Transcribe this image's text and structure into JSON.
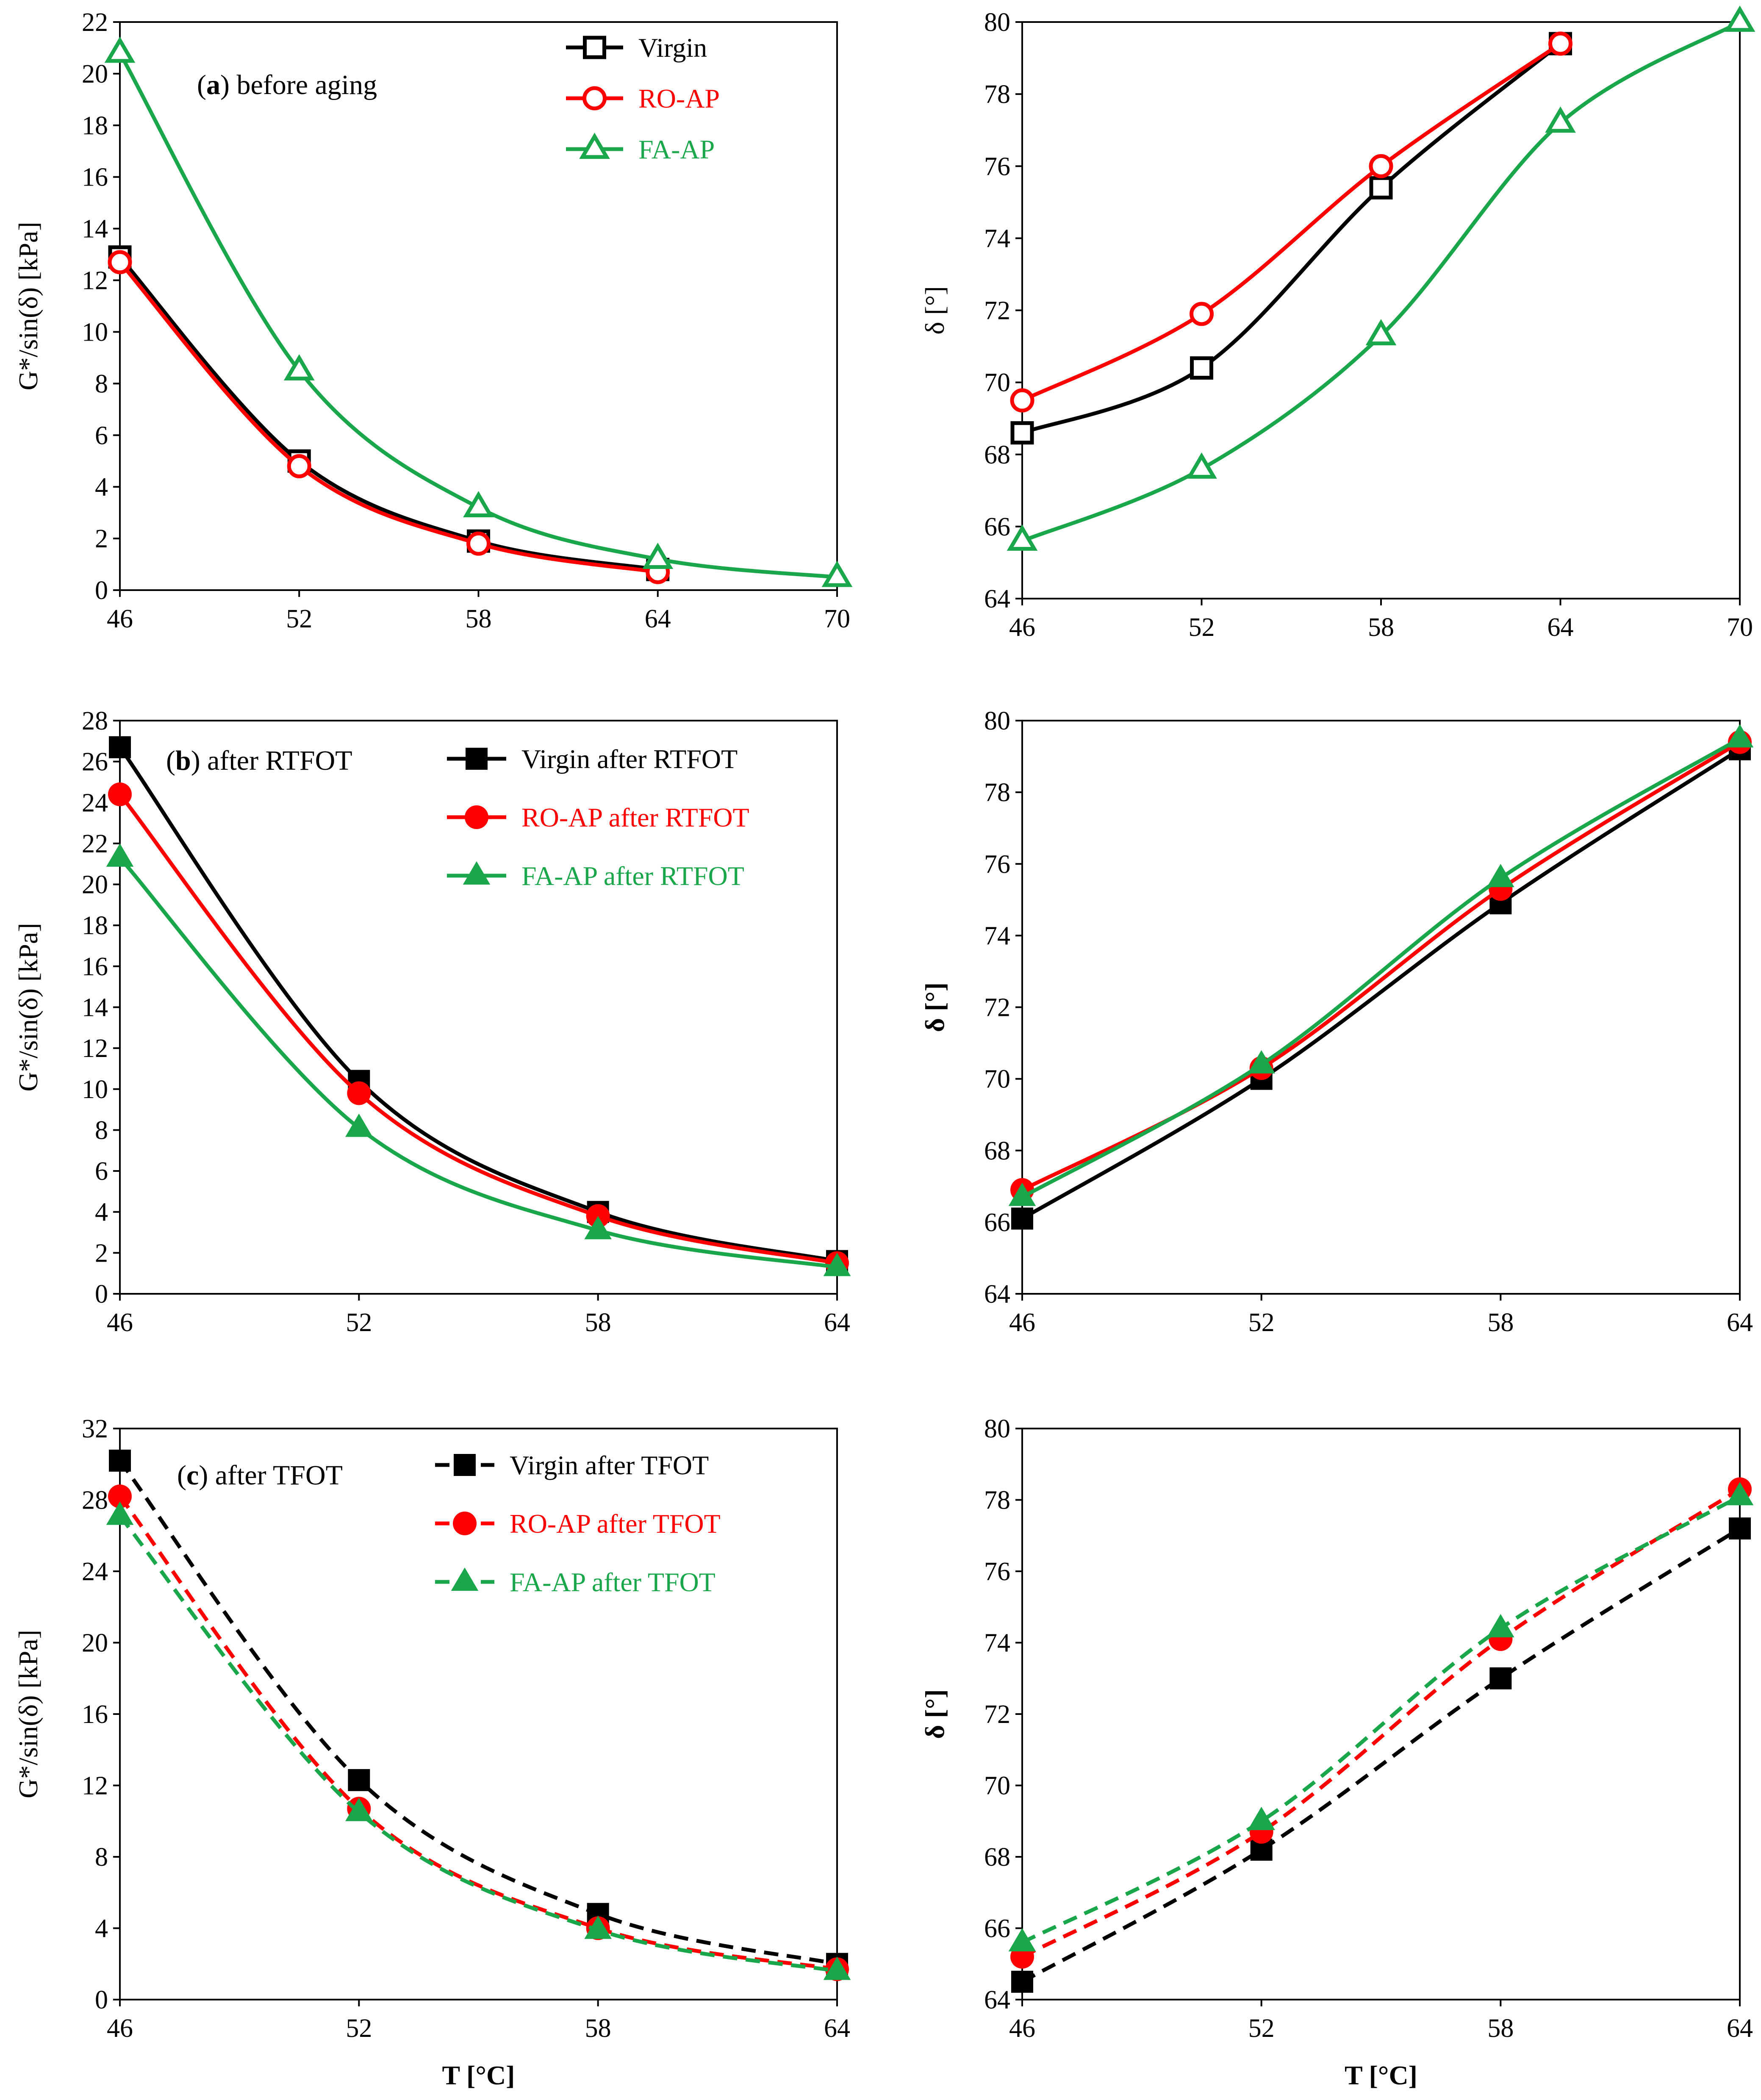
{
  "colors": {
    "virgin": "#000000",
    "roap": "#ff0000",
    "faap": "#1aa64b"
  },
  "chart_data": [
    {
      "id": "a-left",
      "type": "line",
      "annotation_letter": "a",
      "annotation_rest": " before aging",
      "ylabel": "G*/sin(δ) [kPa]",
      "xlabel": "",
      "ylim": [
        0,
        22
      ],
      "ystep": 2,
      "xticks": [
        46,
        52,
        58,
        64,
        70
      ],
      "series": [
        {
          "name": "Virgin",
          "color": "virgin",
          "marker": "square-open",
          "dash": false,
          "x": [
            46,
            52,
            58,
            64
          ],
          "values": [
            12.9,
            5.0,
            1.9,
            0.8
          ]
        },
        {
          "name": "RO-AP",
          "color": "roap",
          "marker": "circle-open",
          "dash": false,
          "x": [
            46,
            52,
            58,
            64
          ],
          "values": [
            12.7,
            4.8,
            1.8,
            0.7
          ]
        },
        {
          "name": "FA-AP",
          "color": "faap",
          "marker": "triangle-open",
          "dash": false,
          "x": [
            46,
            52,
            58,
            64,
            70
          ],
          "values": [
            20.8,
            8.5,
            3.2,
            1.2,
            0.5
          ]
        }
      ]
    },
    {
      "id": "a-right",
      "type": "line",
      "ylabel": "δ [°]",
      "xlabel": "",
      "ylim": [
        64,
        80
      ],
      "ystep": 2,
      "xticks": [
        46,
        52,
        58,
        64,
        70
      ],
      "series": [
        {
          "name": "Virgin",
          "color": "virgin",
          "marker": "square-open",
          "dash": false,
          "x": [
            46,
            52,
            58,
            64
          ],
          "values": [
            68.6,
            70.4,
            75.4,
            79.4
          ]
        },
        {
          "name": "RO-AP",
          "color": "roap",
          "marker": "circle-open",
          "dash": false,
          "x": [
            46,
            52,
            58,
            64
          ],
          "values": [
            69.5,
            71.9,
            76.0,
            79.4
          ]
        },
        {
          "name": "FA-AP",
          "color": "faap",
          "marker": "triangle-open",
          "dash": false,
          "x": [
            46,
            52,
            58,
            64,
            70
          ],
          "values": [
            65.6,
            67.6,
            71.3,
            77.2,
            80.0
          ]
        }
      ]
    },
    {
      "id": "b-left",
      "type": "line",
      "annotation_letter": "b",
      "annotation_rest": " after RTFOT",
      "ylabel": "G*/sin(δ) [kPa]",
      "xlabel": "",
      "ylim": [
        0,
        28
      ],
      "ystep": 2,
      "xticks": [
        46,
        52,
        58,
        64
      ],
      "series": [
        {
          "name": "Virgin after RTFOT",
          "color": "virgin",
          "marker": "square-filled",
          "dash": false,
          "x": [
            46,
            52,
            58,
            64
          ],
          "values": [
            26.7,
            10.4,
            4.0,
            1.6
          ]
        },
        {
          "name": "RO-AP after RTFOT",
          "color": "roap",
          "marker": "circle-filled",
          "dash": false,
          "x": [
            46,
            52,
            58,
            64
          ],
          "values": [
            24.4,
            9.8,
            3.8,
            1.5
          ]
        },
        {
          "name": "FA-AP after RTFOT",
          "color": "faap",
          "marker": "triangle-filled",
          "dash": false,
          "x": [
            46,
            52,
            58,
            64
          ],
          "values": [
            21.3,
            8.1,
            3.1,
            1.3
          ]
        }
      ]
    },
    {
      "id": "b-right",
      "type": "line",
      "ylabel": "δ [°]",
      "xlabel": "",
      "ylim": [
        64,
        80
      ],
      "ystep": 2,
      "xticks": [
        46,
        52,
        58,
        64
      ],
      "series": [
        {
          "name": "Virgin after RTFOT",
          "color": "virgin",
          "marker": "square-filled",
          "dash": false,
          "x": [
            46,
            52,
            58,
            64
          ],
          "values": [
            66.1,
            70.0,
            74.9,
            79.2
          ]
        },
        {
          "name": "RO-AP after RTFOT",
          "color": "roap",
          "marker": "circle-filled",
          "dash": false,
          "x": [
            46,
            52,
            58,
            64
          ],
          "values": [
            66.9,
            70.3,
            75.3,
            79.4
          ]
        },
        {
          "name": "FA-AP after RTFOT",
          "color": "faap",
          "marker": "triangle-filled",
          "dash": false,
          "x": [
            46,
            52,
            58,
            64
          ],
          "values": [
            66.7,
            70.4,
            75.6,
            79.5
          ]
        }
      ]
    },
    {
      "id": "c-left",
      "type": "line",
      "annotation_letter": "c",
      "annotation_rest": " after TFOT",
      "ylabel": "G*/sin(δ) [kPa]",
      "xlabel": "T [°C]",
      "ylim": [
        0,
        32
      ],
      "ystep": 4,
      "xticks": [
        46,
        52,
        58,
        64
      ],
      "series": [
        {
          "name": "Virgin after TFOT",
          "color": "virgin",
          "marker": "square-filled",
          "dash": true,
          "x": [
            46,
            52,
            58,
            64
          ],
          "values": [
            30.2,
            12.3,
            4.8,
            2.0
          ]
        },
        {
          "name": "RO-AP after TFOT",
          "color": "roap",
          "marker": "circle-filled",
          "dash": true,
          "x": [
            46,
            52,
            58,
            64
          ],
          "values": [
            28.2,
            10.7,
            4.0,
            1.7
          ]
        },
        {
          "name": "FA-AP after TFOT",
          "color": "faap",
          "marker": "triangle-filled",
          "dash": true,
          "x": [
            46,
            52,
            58,
            64
          ],
          "values": [
            27.1,
            10.5,
            3.9,
            1.6
          ]
        }
      ]
    },
    {
      "id": "c-right",
      "type": "line",
      "ylabel": "δ [°]",
      "xlabel": "T [°C]",
      "ylim": [
        64,
        80
      ],
      "ystep": 2,
      "xticks": [
        46,
        52,
        58,
        64
      ],
      "series": [
        {
          "name": "Virgin after TFOT",
          "color": "virgin",
          "marker": "square-filled",
          "dash": true,
          "x": [
            46,
            52,
            58,
            64
          ],
          "values": [
            64.5,
            68.2,
            73.0,
            77.2
          ]
        },
        {
          "name": "RO-AP after TFOT",
          "color": "roap",
          "marker": "circle-filled",
          "dash": true,
          "x": [
            46,
            52,
            58,
            64
          ],
          "values": [
            65.2,
            68.7,
            74.1,
            78.3
          ]
        },
        {
          "name": "FA-AP after TFOT",
          "color": "faap",
          "marker": "triangle-filled",
          "dash": true,
          "x": [
            46,
            52,
            58,
            64
          ],
          "values": [
            65.6,
            69.0,
            74.4,
            78.1
          ]
        }
      ]
    }
  ]
}
